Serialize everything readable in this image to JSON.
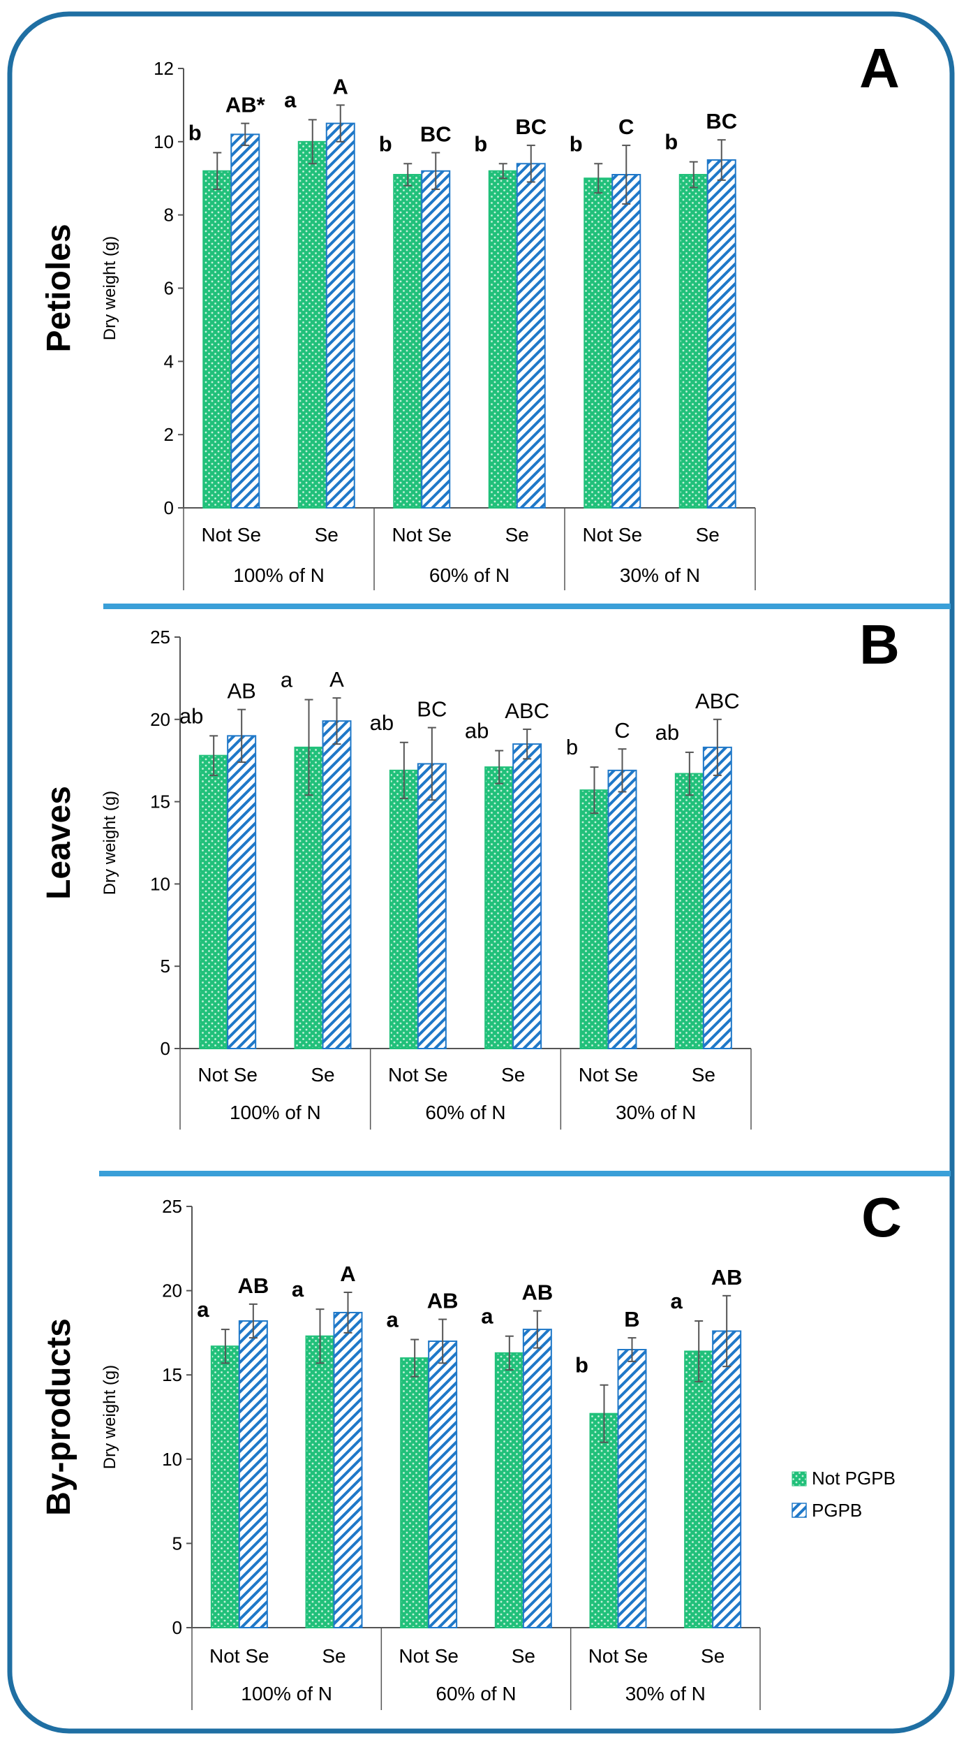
{
  "colors": {
    "frame": "#1f6fa3",
    "separator": "#3a9fd8",
    "not_pgpb_fill": "#21c07a",
    "not_pgpb_dot": "#c8f2dc",
    "pgpb_stripe": "#1f78c8",
    "pgpb_bg": "#ffffff",
    "error_bar": "#555555",
    "axis": "#555555"
  },
  "legend": {
    "entries": [
      "Not PGPB",
      "PGPB"
    ]
  },
  "chart_data": [
    {
      "type": "bar",
      "panel_letter": "A",
      "organ_label": "Petioles",
      "ylabel": "Dry weight (g)",
      "ylim": [
        0,
        12
      ],
      "yticks": [
        0,
        2,
        4,
        6,
        8,
        10,
        12
      ],
      "categories": [
        "Not Se",
        "Se",
        "Not Se",
        "Se",
        "Not Se",
        "Se"
      ],
      "groups": [
        "100% of N",
        "60% of N",
        "30% of N"
      ],
      "series": [
        {
          "name": "Not PGPB",
          "values": [
            9.2,
            10.0,
            9.1,
            9.2,
            9.0,
            9.1
          ],
          "errors": [
            0.5,
            0.6,
            0.3,
            0.2,
            0.4,
            0.35
          ],
          "letters": [
            "b",
            "a",
            "b",
            "b",
            "b",
            "b"
          ]
        },
        {
          "name": "PGPB",
          "values": [
            10.2,
            10.5,
            9.2,
            9.4,
            9.1,
            9.5
          ],
          "errors": [
            0.3,
            0.5,
            0.5,
            0.5,
            0.8,
            0.55
          ],
          "letters": [
            "AB*",
            "A",
            "BC",
            "BC",
            "C",
            "BC"
          ]
        }
      ]
    },
    {
      "type": "bar",
      "panel_letter": "B",
      "organ_label": "Leaves",
      "ylabel": "Dry weight (g)",
      "ylim": [
        0,
        25
      ],
      "yticks": [
        0,
        5,
        10,
        15,
        20,
        25
      ],
      "categories": [
        "Not Se",
        "Se",
        "Not Se",
        "Se",
        "Not Se",
        "Se"
      ],
      "groups": [
        "100% of N",
        "60% of N",
        "30% of N"
      ],
      "series": [
        {
          "name": "Not PGPB",
          "values": [
            17.8,
            18.3,
            16.9,
            17.1,
            15.7,
            16.7
          ],
          "errors": [
            1.2,
            2.9,
            1.7,
            1.0,
            1.4,
            1.3
          ],
          "letters": [
            "ab",
            "a",
            "ab",
            "ab",
            "b",
            "ab"
          ]
        },
        {
          "name": "PGPB",
          "values": [
            19.0,
            19.9,
            17.3,
            18.5,
            16.9,
            18.3
          ],
          "errors": [
            1.6,
            1.4,
            2.2,
            0.9,
            1.3,
            1.7
          ],
          "letters": [
            "AB",
            "A",
            "BC",
            "ABC",
            "C",
            "ABC"
          ]
        }
      ]
    },
    {
      "type": "bar",
      "panel_letter": "C",
      "organ_label": "By-products",
      "ylabel": "Dry weight (g)",
      "ylim": [
        0,
        25
      ],
      "yticks": [
        0,
        5,
        10,
        15,
        20,
        25
      ],
      "categories": [
        "Not Se",
        "Se",
        "Not Se",
        "Se",
        "Not Se",
        "Se"
      ],
      "groups": [
        "100% of N",
        "60% of N",
        "30% of N"
      ],
      "series": [
        {
          "name": "Not PGPB",
          "values": [
            16.7,
            17.3,
            16.0,
            16.3,
            12.7,
            16.4
          ],
          "errors": [
            1.0,
            1.6,
            1.1,
            1.0,
            1.7,
            1.8
          ],
          "letters": [
            "a",
            "a",
            "a",
            "a",
            "b",
            "a"
          ]
        },
        {
          "name": "PGPB",
          "values": [
            18.2,
            18.7,
            17.0,
            17.7,
            16.5,
            17.6
          ],
          "errors": [
            1.0,
            1.2,
            1.3,
            1.1,
            0.7,
            2.1
          ],
          "letters": [
            "AB",
            "A",
            "AB",
            "AB",
            "B",
            "AB"
          ]
        }
      ]
    }
  ]
}
